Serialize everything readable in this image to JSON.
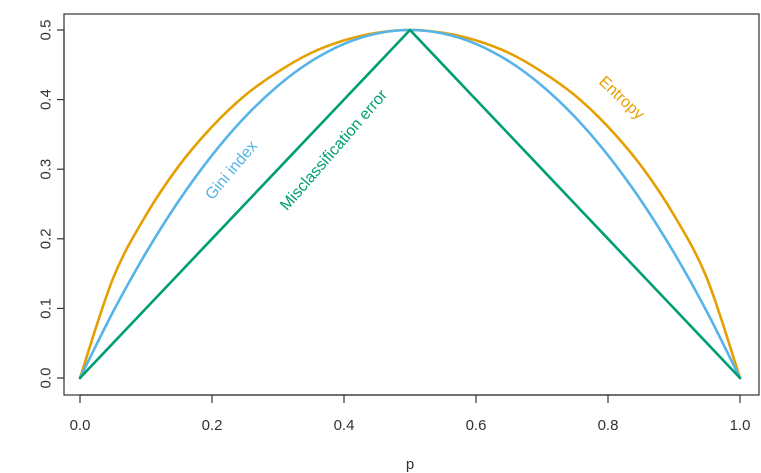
{
  "chart_data": {
    "type": "line",
    "title": "",
    "xlabel": "p",
    "ylabel": "",
    "xlim": [
      0,
      1
    ],
    "ylim": [
      0,
      0.5
    ],
    "x_ticks": [
      "0.0",
      "0.2",
      "0.4",
      "0.6",
      "0.8",
      "1.0"
    ],
    "y_ticks": [
      "0.0",
      "0.1",
      "0.2",
      "0.3",
      "0.4",
      "0.5"
    ],
    "grid": false,
    "legend": "none",
    "x": [
      0,
      0.05,
      0.1,
      0.15,
      0.2,
      0.25,
      0.3,
      0.35,
      0.4,
      0.45,
      0.5,
      0.55,
      0.6,
      0.65,
      0.7,
      0.75,
      0.8,
      0.85,
      0.9,
      0.95,
      1
    ],
    "series": [
      {
        "key": "entropy",
        "color": "#E69F00",
        "values": [
          0,
          0.143,
          0.234,
          0.305,
          0.361,
          0.406,
          0.44,
          0.467,
          0.485,
          0.496,
          0.5,
          0.496,
          0.485,
          0.467,
          0.44,
          0.406,
          0.361,
          0.305,
          0.234,
          0.143,
          0
        ]
      },
      {
        "key": "gini",
        "color": "#56B4E9",
        "values": [
          0,
          0.095,
          0.18,
          0.255,
          0.32,
          0.375,
          0.42,
          0.455,
          0.48,
          0.495,
          0.5,
          0.495,
          0.48,
          0.455,
          0.42,
          0.375,
          0.32,
          0.255,
          0.18,
          0.095,
          0
        ]
      },
      {
        "key": "misclassification",
        "color": "#009E73",
        "values": [
          0,
          0.05,
          0.1,
          0.15,
          0.2,
          0.25,
          0.3,
          0.35,
          0.4,
          0.45,
          0.5,
          0.45,
          0.4,
          0.35,
          0.3,
          0.25,
          0.2,
          0.15,
          0.1,
          0.05,
          0
        ]
      }
    ],
    "annotations": [
      {
        "text": "Entropy",
        "color": "#E69F00",
        "x": 0.82,
        "y": 0.402,
        "angle": 43
      },
      {
        "text": "Gini index",
        "color": "#56B4E9",
        "x": 0.23,
        "y": 0.298,
        "angle": -50
      },
      {
        "text": "Misclassification error",
        "color": "#009E73",
        "x": 0.385,
        "y": 0.327,
        "angle": -49
      }
    ]
  }
}
